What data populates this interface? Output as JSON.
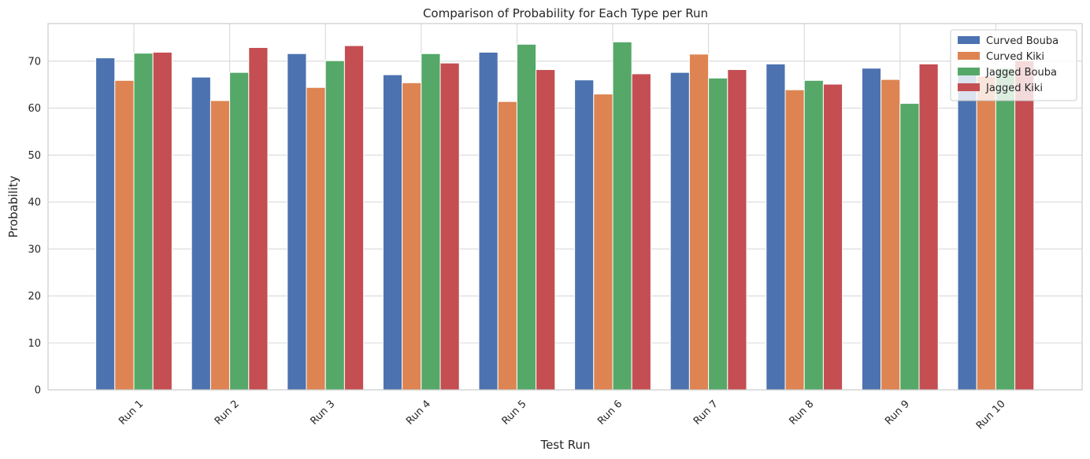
{
  "chart_data": {
    "type": "bar",
    "title": "Comparison of Probability for Each Type per Run",
    "xlabel": "Test Run",
    "ylabel": "Probability",
    "ylim": [
      0,
      78
    ],
    "yticks": [
      0,
      10,
      20,
      30,
      40,
      50,
      60,
      70
    ],
    "grid": true,
    "legend_position": "top-right",
    "categories": [
      "Run 1",
      "Run 2",
      "Run 3",
      "Run 4",
      "Run 5",
      "Run 6",
      "Run 7",
      "Run 8",
      "Run 9",
      "Run 10"
    ],
    "series": [
      {
        "name": "Curved Bouba",
        "color": "#4c72b0",
        "values": [
          70.7,
          66.6,
          71.6,
          67.1,
          71.9,
          66.0,
          67.6,
          69.4,
          68.5,
          68.0
        ]
      },
      {
        "name": "Curved Kiki",
        "color": "#dd8452",
        "values": [
          65.9,
          61.6,
          64.4,
          65.4,
          61.4,
          63.0,
          71.5,
          63.9,
          66.1,
          66.8
        ]
      },
      {
        "name": "Jagged Bouba",
        "color": "#55a868",
        "values": [
          71.7,
          67.6,
          70.1,
          71.6,
          73.6,
          74.1,
          66.4,
          65.9,
          61.0,
          68.5
        ]
      },
      {
        "name": "Jagged Kiki",
        "color": "#c44e52",
        "values": [
          71.9,
          72.9,
          73.3,
          69.6,
          68.2,
          67.3,
          68.2,
          65.1,
          69.4,
          70.1
        ]
      }
    ]
  }
}
